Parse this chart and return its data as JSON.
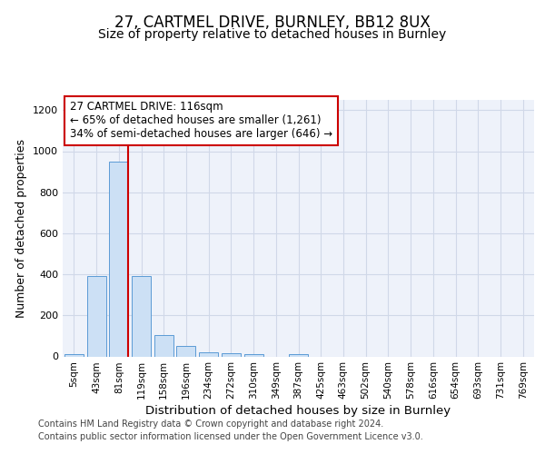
{
  "title": "27, CARTMEL DRIVE, BURNLEY, BB12 8UX",
  "subtitle": "Size of property relative to detached houses in Burnley",
  "xlabel": "Distribution of detached houses by size in Burnley",
  "ylabel": "Number of detached properties",
  "footer_line1": "Contains HM Land Registry data © Crown copyright and database right 2024.",
  "footer_line2": "Contains public sector information licensed under the Open Government Licence v3.0.",
  "annotation_line1": "27 CARTMEL DRIVE: 116sqm",
  "annotation_line2": "← 65% of detached houses are smaller (1,261)",
  "annotation_line3": "34% of semi-detached houses are larger (646) →",
  "bar_labels": [
    "5sqm",
    "43sqm",
    "81sqm",
    "119sqm",
    "158sqm",
    "196sqm",
    "234sqm",
    "272sqm",
    "310sqm",
    "349sqm",
    "387sqm",
    "425sqm",
    "463sqm",
    "502sqm",
    "540sqm",
    "578sqm",
    "616sqm",
    "654sqm",
    "693sqm",
    "731sqm",
    "769sqm"
  ],
  "bar_values": [
    10,
    390,
    950,
    390,
    105,
    50,
    22,
    17,
    10,
    0,
    10,
    0,
    0,
    0,
    0,
    0,
    0,
    0,
    0,
    0,
    0
  ],
  "bar_color": "#cce0f5",
  "bar_edgecolor": "#5b9bd5",
  "vline_color": "#cc0000",
  "vline_x": 2.43,
  "ylim": [
    0,
    1250
  ],
  "yticks": [
    0,
    200,
    400,
    600,
    800,
    1000,
    1200
  ],
  "grid_color": "#d0d8e8",
  "background_color": "#eef2fa",
  "annotation_box_edgecolor": "#cc0000",
  "title_fontsize": 12,
  "subtitle_fontsize": 10,
  "axis_label_fontsize": 9,
  "tick_fontsize": 7.5,
  "annotation_fontsize": 8.5,
  "footer_fontsize": 7
}
